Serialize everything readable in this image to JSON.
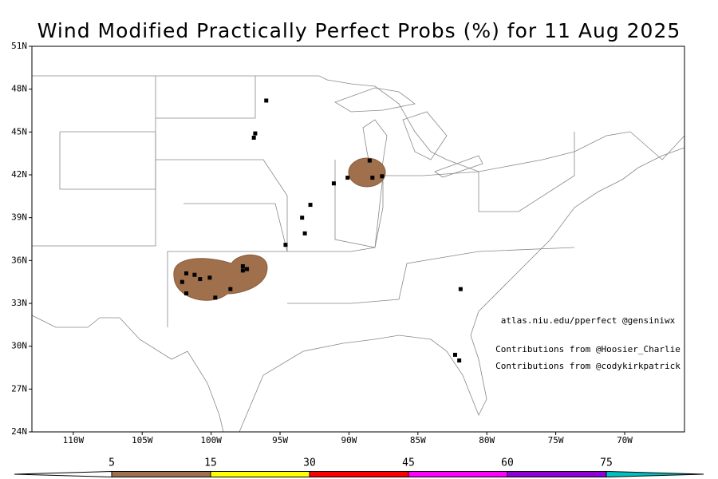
{
  "map": {
    "title": "Wind Modified Practically Perfect Probs (%) for 11 Aug 2025",
    "lonlim": [
      -113,
      -65.66
    ],
    "latlim": [
      24,
      51
    ],
    "lat_ticks": [
      {
        "value": 24,
        "label": "24N"
      },
      {
        "value": 27,
        "label": "27N"
      },
      {
        "value": 30,
        "label": "30N"
      },
      {
        "value": 33,
        "label": "33N"
      },
      {
        "value": 36,
        "label": "36N"
      },
      {
        "value": 39,
        "label": "39N"
      },
      {
        "value": 42,
        "label": "42N"
      },
      {
        "value": 45,
        "label": "45N"
      },
      {
        "value": 48,
        "label": "48N"
      },
      {
        "value": 51,
        "label": "51N"
      }
    ],
    "lon_ticks": [
      {
        "value": -110,
        "label": "110W"
      },
      {
        "value": -105,
        "label": "105W"
      },
      {
        "value": -100,
        "label": "100W"
      },
      {
        "value": -95,
        "label": "95W"
      },
      {
        "value": -90,
        "label": "90W"
      },
      {
        "value": -85,
        "label": "85W"
      },
      {
        "value": -80,
        "label": "80W"
      },
      {
        "value": -75,
        "label": "75W"
      },
      {
        "value": -70,
        "label": "70W"
      }
    ],
    "reports": {
      "lon": [
        -96.0,
        -96.8,
        -96.9,
        -88.5,
        -88.3,
        -87.6,
        -90.1,
        -91.1,
        -92.8,
        -93.4,
        -93.2,
        -94.6,
        -97.7,
        -97.7,
        -97.4,
        -101.8,
        -101.2,
        -100.8,
        -100.1,
        -102.1,
        -101.8,
        -98.6,
        -99.7,
        -81.9,
        -82.3,
        -82.0
      ],
      "lat": [
        47.2,
        44.9,
        44.6,
        43.0,
        41.8,
        41.9,
        41.8,
        41.4,
        39.9,
        39.0,
        37.9,
        37.1,
        35.6,
        35.3,
        35.4,
        35.1,
        35.0,
        34.7,
        34.8,
        34.5,
        33.7,
        34.0,
        33.4,
        34.0,
        29.4,
        29.0
      ]
    },
    "credits": [
      "atlas.niu.edu/pperfect @gensiniwx",
      "Contributions from @Hoosier_Charlie",
      "Contributions from @codykirkpatrick"
    ],
    "colorbar": {
      "levels": [
        5,
        15,
        30,
        45,
        60,
        75
      ],
      "colors": [
        "#ffffff",
        "#a0704c",
        "#ffff00",
        "#ff0000",
        "#ff00ff",
        "#9000d8",
        "#00c0c0"
      ]
    }
  }
}
